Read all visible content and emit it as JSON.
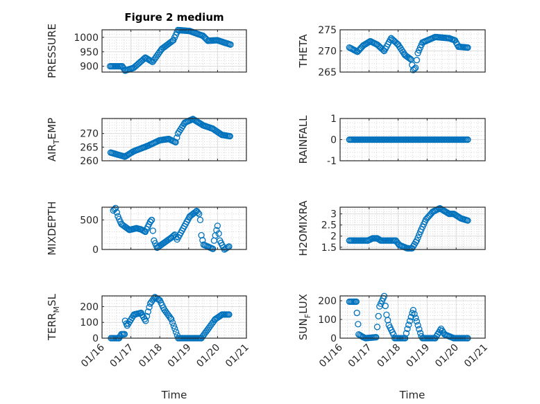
{
  "chart_data": {
    "type": "scatter",
    "title": "Figure 2 medium",
    "xlabel": "Time",
    "x_units": "days since 01/16",
    "xlim": [
      0,
      5
    ],
    "xticks": [
      0,
      1,
      2,
      3,
      4,
      5
    ],
    "xtick_labels": [
      "01/16",
      "01/17",
      "01/18",
      "01/19",
      "01/20",
      "01/21"
    ],
    "grid": true,
    "minor_grid": true,
    "marker": "circle-open",
    "color": "#0072BD",
    "sample_step_days": 0.042,
    "subplots": [
      {
        "ylabel": [
          "PRESSURE"
        ],
        "ylim": [
          880,
          1026
        ],
        "yticks": [
          900,
          950,
          1000
        ],
        "x": [
          0.28,
          0.7,
          0.8,
          1.1,
          1.5,
          1.75,
          2.07,
          2.47,
          2.63,
          3.03,
          3.5,
          3.67,
          3.99,
          4.45
        ],
        "y": [
          900,
          900,
          885,
          895,
          930,
          915,
          960,
          990,
          1025,
          1022,
          1005,
          988,
          990,
          975
        ]
      },
      {
        "ylabel": [
          "THETA"
        ],
        "ylim": [
          265,
          275
        ],
        "yticks": [
          265,
          270,
          275
        ],
        "x": [
          0.32,
          0.6,
          0.8,
          1.04,
          1.28,
          1.52,
          1.76,
          2.0,
          2.24,
          2.44,
          2.52,
          2.6,
          2.68,
          2.84,
          3.28,
          3.76,
          3.96,
          4.08,
          4.4
        ],
        "y": [
          270.8,
          269.8,
          271.3,
          272.3,
          271.5,
          270,
          273,
          271.5,
          269,
          268,
          265.5,
          266,
          269.5,
          272,
          273.3,
          273,
          272.5,
          271,
          270.8
        ]
      },
      {
        "ylabel": [
          "AIR",
          "T",
          "EMP"
        ],
        "ylim": [
          260,
          275.5
        ],
        "yticks": [
          260,
          265,
          270
        ],
        "x": [
          0.3,
          0.79,
          1.1,
          1.59,
          1.99,
          2.31,
          2.55,
          2.63,
          2.87,
          3.15,
          3.5,
          3.83,
          4.15,
          4.43
        ],
        "y": [
          263,
          261.5,
          263.5,
          265.5,
          267.5,
          268,
          266.8,
          270,
          274,
          275.3,
          273,
          271.8,
          269.5,
          269
        ]
      },
      {
        "ylabel": [
          "RAINFALL"
        ],
        "ylim": [
          -1,
          1
        ],
        "yticks": [
          -1,
          0,
          1
        ],
        "x": [
          0.32,
          4.4
        ],
        "y": [
          0,
          0
        ]
      },
      {
        "ylabel": [
          "MIXDEPTH"
        ],
        "ylim": [
          0,
          715
        ],
        "yticks": [
          0,
          500
        ],
        "x": [
          0.39,
          0.47,
          0.55,
          0.67,
          0.95,
          1.19,
          1.35,
          1.5,
          1.67,
          1.72,
          1.8,
          1.91,
          2.4,
          2.52,
          2.6,
          3.04,
          3.28,
          3.36,
          3.4,
          3.44,
          3.52,
          3.84,
          3.88,
          4.0,
          4.08,
          4.24,
          4.4
        ],
        "y": [
          660,
          700,
          560,
          430,
          330,
          360,
          340,
          300,
          470,
          500,
          150,
          30,
          200,
          250,
          170,
          560,
          650,
          600,
          500,
          240,
          80,
          10,
          150,
          400,
          150,
          0,
          50
        ]
      },
      {
        "ylabel": [
          "H2OMIXRA"
        ],
        "ylim": [
          1.4,
          3.3
        ],
        "yticks": [
          1.5,
          2,
          2.5,
          3
        ],
        "x": [
          0.32,
          0.96,
          1.12,
          1.28,
          1.4,
          1.92,
          2.04,
          2.32,
          2.48,
          2.64,
          2.8,
          2.96,
          3.2,
          3.44,
          3.76,
          3.92,
          4.16,
          4.4
        ],
        "y": [
          1.8,
          1.8,
          1.9,
          1.9,
          1.8,
          1.8,
          1.6,
          1.45,
          1.45,
          1.8,
          2.3,
          2.75,
          3.1,
          3.25,
          3.0,
          3.0,
          2.8,
          2.7
        ]
      },
      {
        "ylabel": [
          "TERR",
          "M",
          "SL"
        ],
        "ylim": [
          0,
          268
        ],
        "yticks": [
          0,
          100,
          200
        ],
        "x": [
          0.31,
          0.59,
          0.67,
          0.78,
          0.8,
          0.87,
          1.11,
          1.35,
          1.51,
          1.67,
          1.83,
          2.0,
          2.16,
          2.4,
          2.52,
          2.64,
          3.44,
          3.92,
          4.16,
          4.4
        ],
        "y": [
          0,
          0,
          25,
          25,
          110,
          80,
          150,
          160,
          110,
          220,
          260,
          240,
          180,
          120,
          60,
          0,
          0,
          120,
          150,
          150
        ]
      },
      {
        "ylabel": [
          "SUN",
          "F",
          "LUX"
        ],
        "ylim": [
          0,
          226
        ],
        "yticks": [
          0,
          100,
          200
        ],
        "x": [
          0.32,
          0.56,
          0.58,
          0.62,
          0.64,
          0.8,
          0.88,
          1.24,
          1.28,
          1.36,
          1.52,
          1.6,
          1.68,
          1.84,
          1.88,
          2.24,
          2.32,
          2.52,
          2.64,
          2.8,
          2.84,
          3.28,
          3.48,
          3.6,
          3.92,
          4.4
        ],
        "y": [
          195,
          195,
          135,
          75,
          20,
          5,
          0,
          5,
          60,
          170,
          225,
          125,
          70,
          20,
          0,
          0,
          50,
          150,
          90,
          10,
          0,
          0,
          50,
          20,
          0,
          0
        ]
      }
    ]
  }
}
